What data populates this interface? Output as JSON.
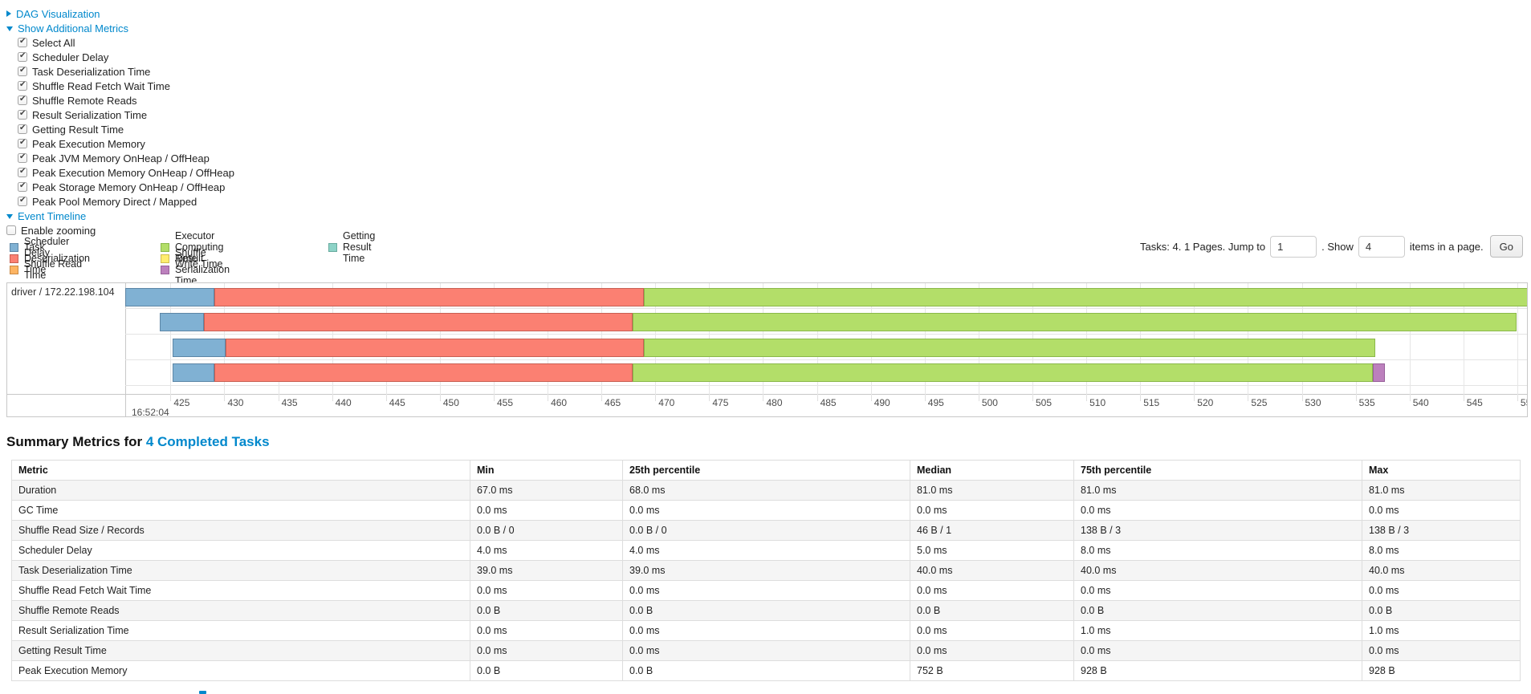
{
  "sections": {
    "dag": {
      "label": "DAG Visualization",
      "expanded": false
    },
    "metrics": {
      "label": "Show Additional Metrics",
      "expanded": true
    },
    "timeline": {
      "label": "Event Timeline",
      "expanded": true
    }
  },
  "metric_checkboxes": [
    {
      "label": "Select All",
      "checked": true
    },
    {
      "label": "Scheduler Delay",
      "checked": true
    },
    {
      "label": "Task Deserialization Time",
      "checked": true
    },
    {
      "label": "Shuffle Read Fetch Wait Time",
      "checked": true
    },
    {
      "label": "Shuffle Remote Reads",
      "checked": true
    },
    {
      "label": "Result Serialization Time",
      "checked": true
    },
    {
      "label": "Getting Result Time",
      "checked": true
    },
    {
      "label": "Peak Execution Memory",
      "checked": true
    },
    {
      "label": "Peak JVM Memory OnHeap / OffHeap",
      "checked": true
    },
    {
      "label": "Peak Execution Memory OnHeap / OffHeap",
      "checked": true
    },
    {
      "label": "Peak Storage Memory OnHeap / OffHeap",
      "checked": true
    },
    {
      "label": "Peak Pool Memory Direct / Mapped",
      "checked": true
    }
  ],
  "enable_zooming": {
    "label": "Enable zooming",
    "checked": false
  },
  "colors": {
    "scheduler_delay": {
      "fill": "#80B1D3",
      "border": "#5c86a6"
    },
    "task_deserialization": {
      "fill": "#FB8072",
      "border": "#c85f53"
    },
    "shuffle_read": {
      "fill": "#FDB462",
      "border": "#c98a44"
    },
    "executor_computing": {
      "fill": "#B3DE69",
      "border": "#8ab84a"
    },
    "shuffle_write": {
      "fill": "#FFED6F",
      "border": "#cfbd4f"
    },
    "result_serialization": {
      "fill": "#BC80BD",
      "border": "#97609a"
    },
    "getting_result": {
      "fill": "#8DD3C7",
      "border": "#68ab9f"
    }
  },
  "legend_columns": [
    [
      {
        "type": "scheduler_delay",
        "label": "Scheduler Delay"
      },
      {
        "type": "task_deserialization",
        "label": "Task Deserialization Time"
      },
      {
        "type": "shuffle_read",
        "label": "Shuffle Read Time"
      }
    ],
    [
      {
        "type": "executor_computing",
        "label": "Executor Computing Time"
      },
      {
        "type": "shuffle_write",
        "label": "Shuffle Write Time"
      },
      {
        "type": "result_serialization",
        "label": "Result Serialization Time"
      }
    ],
    [
      {
        "type": "getting_result",
        "label": "Getting Result Time"
      }
    ]
  ],
  "pagination": {
    "prefix": "Tasks: 4. 1 Pages. Jump to",
    "jump_value": "1",
    "mid": ". Show",
    "show_value": "4",
    "suffix": "items in a page.",
    "go_label": "Go"
  },
  "chart_data": {
    "type": "timeline",
    "row_label": "driver / 172.22.198.104",
    "axis": {
      "window_start": 420.8,
      "window_end": 551.05,
      "tick_start": 425,
      "tick_end": 550,
      "tick_step": 5,
      "major_label": "16:52:04",
      "unit": "ms within 16:52:04"
    },
    "tasks": [
      {
        "segments": [
          {
            "type": "scheduler_delay",
            "start": 420.8,
            "end": 429.1
          },
          {
            "type": "task_deserialization",
            "start": 429.1,
            "end": 468.9
          },
          {
            "type": "executor_computing",
            "start": 468.9,
            "end": 551.1
          }
        ]
      },
      {
        "segments": [
          {
            "type": "scheduler_delay",
            "start": 424.0,
            "end": 428.1
          },
          {
            "type": "task_deserialization",
            "start": 428.1,
            "end": 467.9
          },
          {
            "type": "executor_computing",
            "start": 467.9,
            "end": 549.9
          }
        ]
      },
      {
        "segments": [
          {
            "type": "scheduler_delay",
            "start": 425.2,
            "end": 430.1
          },
          {
            "type": "task_deserialization",
            "start": 430.1,
            "end": 468.9
          },
          {
            "type": "executor_computing",
            "start": 468.9,
            "end": 536.8
          }
        ]
      },
      {
        "segments": [
          {
            "type": "scheduler_delay",
            "start": 425.2,
            "end": 429.1
          },
          {
            "type": "task_deserialization",
            "start": 429.1,
            "end": 467.9
          },
          {
            "type": "executor_computing",
            "start": 467.9,
            "end": 536.6
          },
          {
            "type": "result_serialization",
            "start": 536.6,
            "end": 537.7
          }
        ]
      }
    ]
  },
  "summary": {
    "title_prefix": "Summary Metrics for ",
    "title_link": "4 Completed Tasks"
  },
  "table": {
    "headers": [
      "Metric",
      "Min",
      "25th percentile",
      "Median",
      "75th percentile",
      "Max"
    ],
    "rows": [
      [
        "Duration",
        "67.0 ms",
        "68.0 ms",
        "81.0 ms",
        "81.0 ms",
        "81.0 ms"
      ],
      [
        "GC Time",
        "0.0 ms",
        "0.0 ms",
        "0.0 ms",
        "0.0 ms",
        "0.0 ms"
      ],
      [
        "Shuffle Read Size / Records",
        "0.0 B / 0",
        "0.0 B / 0",
        "46 B / 1",
        "138 B / 3",
        "138 B / 3"
      ],
      [
        "Scheduler Delay",
        "4.0 ms",
        "4.0 ms",
        "5.0 ms",
        "8.0 ms",
        "8.0 ms"
      ],
      [
        "Task Deserialization Time",
        "39.0 ms",
        "39.0 ms",
        "40.0 ms",
        "40.0 ms",
        "40.0 ms"
      ],
      [
        "Shuffle Read Fetch Wait Time",
        "0.0 ms",
        "0.0 ms",
        "0.0 ms",
        "0.0 ms",
        "0.0 ms"
      ],
      [
        "Shuffle Remote Reads",
        "0.0 B",
        "0.0 B",
        "0.0 B",
        "0.0 B",
        "0.0 B"
      ],
      [
        "Result Serialization Time",
        "0.0 ms",
        "0.0 ms",
        "0.0 ms",
        "1.0 ms",
        "1.0 ms"
      ],
      [
        "Getting Result Time",
        "0.0 ms",
        "0.0 ms",
        "0.0 ms",
        "0.0 ms",
        "0.0 ms"
      ],
      [
        "Peak Execution Memory",
        "0.0 B",
        "0.0 B",
        "752 B",
        "928 B",
        "928 B"
      ]
    ]
  }
}
